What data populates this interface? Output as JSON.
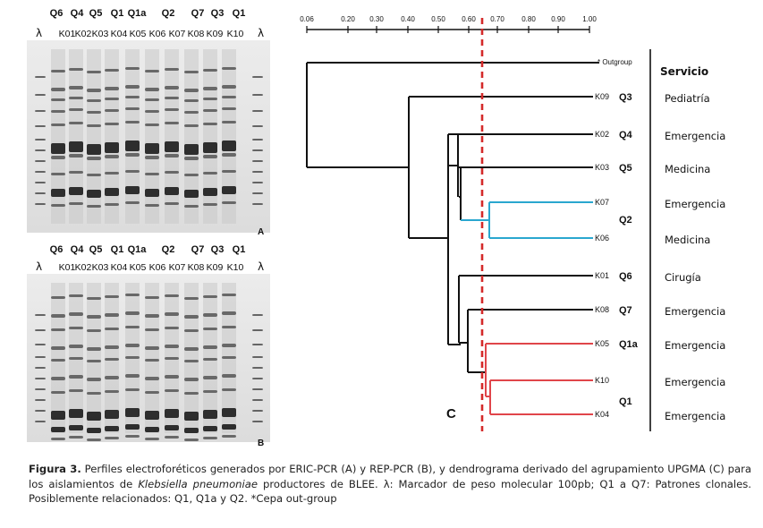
{
  "gel": {
    "clone_labels": [
      "Q6",
      "Q4",
      "Q5",
      "Q1",
      "Q1a",
      "Q2",
      "Q7",
      "Q3",
      "Q1"
    ],
    "sample_labels": [
      "K01",
      "K02",
      "K03",
      "K04",
      "K05",
      "K06",
      "K07",
      "K08",
      "K09",
      "K10"
    ],
    "marker_symbol": "λ",
    "panel_a_letter": "A",
    "panel_b_letter": "B"
  },
  "dendrogram": {
    "scale_ticks": [
      "0.06",
      "0.20",
      "0.30",
      "0.40",
      "0.50",
      "0.60",
      "0.70",
      "0.80",
      "0.90",
      "1.00"
    ],
    "outgroup_label": "* Outgroup",
    "service_header": "Servicio",
    "panel_letter": "C",
    "leaves": [
      {
        "sample": "K09",
        "clone": "Q3",
        "service": "Pediatría"
      },
      {
        "sample": "K02",
        "clone": "Q4",
        "service": "Emergencia"
      },
      {
        "sample": "K03",
        "clone": "Q5",
        "service": "Medicina"
      },
      {
        "sample": "K07",
        "clone": "",
        "service": "Emergencia"
      },
      {
        "sample": "K06",
        "clone": "",
        "service": "Medicina"
      },
      {
        "sample": "K01",
        "clone": "Q6",
        "service": "Cirugía"
      },
      {
        "sample": "K08",
        "clone": "Q7",
        "service": "Emergencia"
      },
      {
        "sample": "K05",
        "clone": "Q1a",
        "service": "Emergencia"
      },
      {
        "sample": "K10",
        "clone": "",
        "service": "Emergencia"
      },
      {
        "sample": "K04",
        "clone": "",
        "service": "Emergencia"
      }
    ],
    "group_labels": {
      "q2": "Q2",
      "q1": "Q1"
    },
    "colors": {
      "cyan_cluster": "#2aa7cf",
      "red_cluster": "#e0454a",
      "cutoff_line": "#d42a2a"
    }
  },
  "caption": {
    "fig_label": "Figura 3.",
    "text_part1": " Perfiles electroforéticos generados por ERIC-PCR (A) y REP-PCR (B), y dendrograma derivado del agrupamiento UPGMA (C) para los aislamientos de ",
    "species": "Klebsiella pneumoniae",
    "text_part2": " productores de BLEE. λ: Marcador de peso molecular 100pb; Q1 a Q7: Patrones clonales. Posiblemente relacionados: Q1, Q1a y Q2. *Cepa out-group"
  }
}
